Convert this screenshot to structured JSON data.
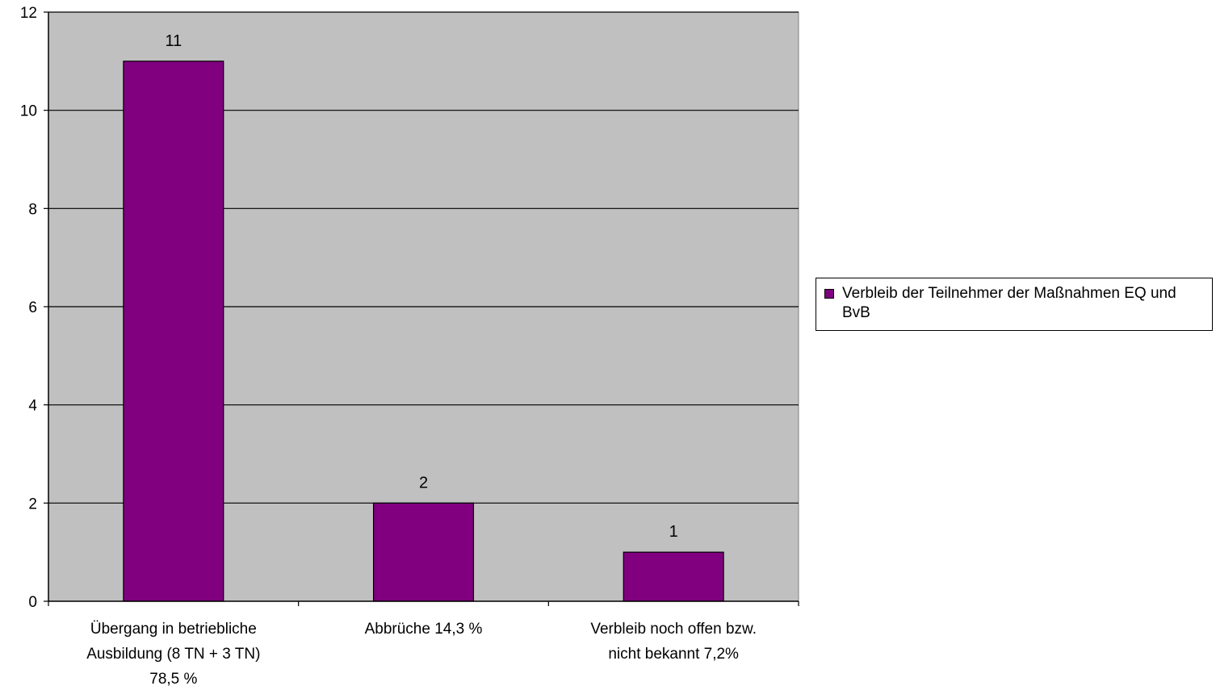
{
  "chart_data": {
    "type": "bar",
    "categories": [
      [
        "Übergang in betriebliche",
        "Ausbildung (8 TN + 3 TN)",
        "78,5 %"
      ],
      [
        "Abbrüche 14,3 %"
      ],
      [
        "Verbleib noch offen bzw.",
        "nicht bekannt 7,2%"
      ]
    ],
    "series": [
      {
        "name": "Verbleib der Teilnehmer der Maßnahmen EQ und BvB",
        "values": [
          11,
          2,
          1
        ]
      }
    ],
    "data_labels": [
      "11",
      "2",
      "1"
    ],
    "ylim": [
      0,
      12
    ],
    "yticks": [
      0,
      2,
      4,
      6,
      8,
      10,
      12
    ],
    "grid": true,
    "legend": "right",
    "colors": {
      "bar": "#800080",
      "plot_bg": "#c0c0c0",
      "gridline": "#000000"
    }
  },
  "legend": {
    "text": "Verbleib der Teilnehmer der Maßnahmen EQ und BvB"
  }
}
